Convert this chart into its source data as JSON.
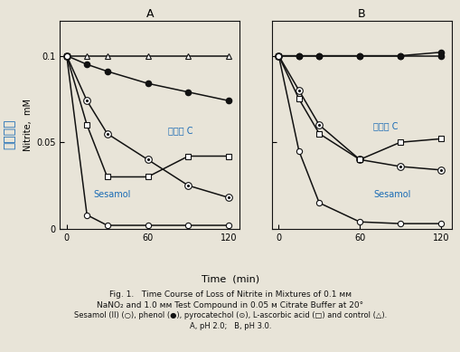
{
  "fig_width": 5.1,
  "fig_height": 3.89,
  "dpi": 100,
  "background_color": "#e8e4d8",
  "panel_A_title": "A",
  "panel_B_title": "B",
  "xlabel": "Time  (min)",
  "ylabel": "Nitrite,  mM",
  "time_points": [
    0,
    15,
    30,
    60,
    90,
    120
  ],
  "A_control": [
    0.1,
    0.1,
    0.1,
    0.1,
    0.1,
    0.1
  ],
  "A_phenol": [
    0.1,
    0.095,
    0.091,
    0.084,
    0.079,
    0.074
  ],
  "A_pyrocatechol": [
    0.1,
    0.074,
    0.055,
    0.04,
    0.025,
    0.018
  ],
  "A_ascorbic": [
    0.1,
    0.06,
    0.03,
    0.03,
    0.042,
    0.042
  ],
  "A_sesamol": [
    0.1,
    0.008,
    0.002,
    0.002,
    0.002,
    0.002
  ],
  "B_control": [
    0.1,
    0.1,
    0.1,
    0.1,
    0.1,
    0.102
  ],
  "B_phenol": [
    0.1,
    0.1,
    0.1,
    0.1,
    0.1,
    0.1
  ],
  "B_pyrocatechol": [
    0.1,
    0.08,
    0.06,
    0.04,
    0.036,
    0.034
  ],
  "B_ascorbic": [
    0.1,
    0.075,
    0.055,
    0.04,
    0.05,
    0.052
  ],
  "B_sesamol": [
    0.1,
    0.045,
    0.015,
    0.004,
    0.003,
    0.003
  ],
  "ylim": [
    0,
    0.12
  ],
  "yticks": [
    0,
    0.05,
    0.1
  ],
  "xticks": [
    0,
    60,
    120
  ],
  "color_black": "#111111",
  "color_blue_korean": "#1a6bb5",
  "label_sesamol": "Sesamol",
  "label_vitaminC": "비타민 C",
  "korean_side_label": "아질산염",
  "caption_line1": "Fig. 1.   Time Course of Loss of Nitrite in Mixtures of 0.1 ᴍᴍ",
  "caption_line2": "NaNO₂ and 1.0 ᴍᴍ Test Compound in 0.05 ᴍ Citrate Buffer at 20°",
  "caption_line3": "Sesamol (II) (○), phenol (●), pyrocatechol (⊙), L-ascorbic acid (□) and control (△).",
  "caption_line4": "A, pH 2.0;   B, pH 3.0."
}
